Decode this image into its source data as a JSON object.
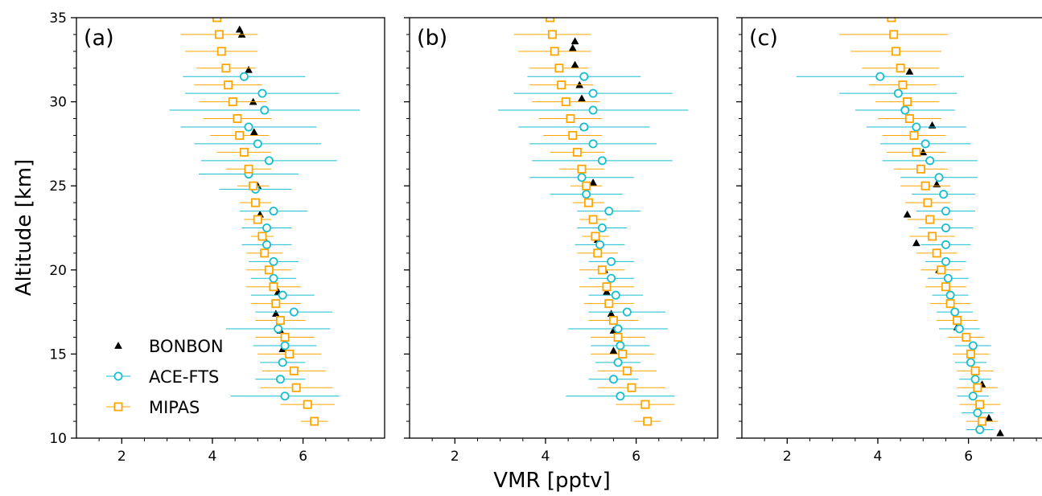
{
  "chart_data": {
    "type": "scatter",
    "xlabel": "VMR [pptv]",
    "ylabel": "Altitude [km]",
    "xlim": [
      1,
      7.8
    ],
    "ylim": [
      10,
      35
    ],
    "xticks": [
      2,
      4,
      6
    ],
    "yticks": [
      10,
      15,
      20,
      25,
      30,
      35
    ],
    "grid": false,
    "legend": {
      "location": "lower-left",
      "panel": 0,
      "entries": [
        "BONBON",
        "ACE-FTS",
        "MIPAS"
      ]
    },
    "colors": {
      "BONBON": "#000000",
      "ACE-FTS": "#17becf",
      "MIPAS": "#ffa500"
    },
    "panels": [
      {
        "label": "(a)",
        "series": [
          {
            "name": "BONBON",
            "marker": "triangle",
            "points": [
              [
                4.6,
                34.3
              ],
              [
                4.65,
                34.0
              ],
              [
                4.8,
                31.9
              ],
              [
                4.9,
                30.0
              ],
              [
                4.92,
                28.2
              ],
              [
                5.0,
                25.0
              ],
              [
                5.05,
                23.3
              ],
              [
                5.2,
                21.6
              ],
              [
                5.45,
                18.7
              ],
              [
                5.4,
                17.4
              ],
              [
                5.5,
                16.4
              ],
              [
                5.55,
                15.3
              ]
            ]
          },
          {
            "name": "ACE-FTS",
            "marker": "circle",
            "points": [
              [
                4.7,
                31.5,
                1.35
              ],
              [
                5.1,
                30.5,
                1.7
              ],
              [
                5.15,
                29.5,
                2.1
              ],
              [
                4.8,
                28.5,
                1.5
              ],
              [
                5.0,
                27.5,
                1.4
              ],
              [
                5.25,
                26.5,
                1.5
              ],
              [
                4.8,
                25.7,
                1.1
              ],
              [
                4.95,
                24.8,
                0.8
              ],
              [
                5.35,
                23.5,
                0.75
              ],
              [
                5.2,
                22.5,
                0.55
              ],
              [
                5.2,
                21.5,
                0.55
              ],
              [
                5.35,
                20.5,
                0.55
              ],
              [
                5.35,
                19.5,
                0.5
              ],
              [
                5.55,
                18.5,
                0.7
              ],
              [
                5.8,
                17.5,
                0.85
              ],
              [
                5.45,
                16.5,
                1.15
              ],
              [
                5.6,
                15.5,
                0.7
              ],
              [
                5.55,
                14.5,
                0.5
              ],
              [
                5.5,
                13.5,
                0.55
              ],
              [
                5.6,
                12.5,
                1.2
              ]
            ]
          },
          {
            "name": "MIPAS",
            "marker": "square",
            "points": [
              [
                4.1,
                35.0,
                0.8
              ],
              [
                4.15,
                34.0,
                0.85
              ],
              [
                4.2,
                33.0,
                0.8
              ],
              [
                4.3,
                32.0,
                0.65
              ],
              [
                4.35,
                31.0,
                0.75
              ],
              [
                4.45,
                30.0,
                0.75
              ],
              [
                4.55,
                29.0,
                0.75
              ],
              [
                4.6,
                28.0,
                0.65
              ],
              [
                4.7,
                27.0,
                0.6
              ],
              [
                4.8,
                26.0,
                0.5
              ],
              [
                4.9,
                25.0,
                0.35
              ],
              [
                4.95,
                24.0,
                0.35
              ],
              [
                5.0,
                23.0,
                0.3
              ],
              [
                5.1,
                22.0,
                0.25
              ],
              [
                5.15,
                21.0,
                0.4
              ],
              [
                5.25,
                20.0,
                0.5
              ],
              [
                5.35,
                19.0,
                0.6
              ],
              [
                5.4,
                18.0,
                0.55
              ],
              [
                5.5,
                17.0,
                0.55
              ],
              [
                5.6,
                16.0,
                0.65
              ],
              [
                5.7,
                15.0,
                0.7
              ],
              [
                5.8,
                14.0,
                0.7
              ],
              [
                5.85,
                13.0,
                0.8
              ],
              [
                6.1,
                12.0,
                0.6
              ],
              [
                6.25,
                11.0,
                0.3
              ]
            ]
          }
        ]
      },
      {
        "label": "(b)",
        "series": [
          {
            "name": "BONBON",
            "marker": "triangle",
            "points": [
              [
                4.65,
                33.6
              ],
              [
                4.6,
                33.2
              ],
              [
                4.65,
                32.2
              ],
              [
                4.75,
                31.0
              ],
              [
                4.8,
                30.2
              ],
              [
                4.85,
                28.5
              ],
              [
                5.05,
                25.2
              ],
              [
                5.05,
                23.0
              ],
              [
                5.15,
                21.8
              ],
              [
                5.3,
                20.0
              ],
              [
                5.35,
                18.7
              ],
              [
                5.45,
                17.4
              ],
              [
                5.5,
                16.4
              ],
              [
                5.5,
                15.2
              ]
            ]
          },
          {
            "name": "ACE-FTS",
            "marker": "circle",
            "points": [
              [
                4.85,
                31.5,
                1.25
              ],
              [
                5.05,
                30.5,
                1.75
              ],
              [
                5.05,
                29.5,
                2.1
              ],
              [
                4.85,
                28.5,
                1.45
              ],
              [
                5.05,
                27.5,
                1.4
              ],
              [
                5.25,
                26.5,
                1.55
              ],
              [
                4.8,
                25.5,
                1.15
              ],
              [
                4.9,
                24.5,
                0.8
              ],
              [
                5.4,
                23.5,
                0.7
              ],
              [
                5.25,
                22.5,
                0.55
              ],
              [
                5.2,
                21.5,
                0.55
              ],
              [
                5.45,
                20.5,
                0.5
              ],
              [
                5.45,
                19.5,
                0.5
              ],
              [
                5.55,
                18.5,
                0.6
              ],
              [
                5.8,
                17.5,
                0.85
              ],
              [
                5.6,
                16.5,
                1.1
              ],
              [
                5.65,
                15.5,
                0.65
              ],
              [
                5.6,
                14.5,
                0.5
              ],
              [
                5.5,
                13.5,
                0.55
              ],
              [
                5.65,
                12.5,
                1.2
              ]
            ]
          },
          {
            "name": "MIPAS",
            "marker": "square",
            "points": [
              [
                4.1,
                35.0,
                0.8
              ],
              [
                4.15,
                34.0,
                0.85
              ],
              [
                4.2,
                33.0,
                0.8
              ],
              [
                4.3,
                32.0,
                0.65
              ],
              [
                4.35,
                31.0,
                0.7
              ],
              [
                4.45,
                30.0,
                0.75
              ],
              [
                4.55,
                29.0,
                0.7
              ],
              [
                4.6,
                28.0,
                0.65
              ],
              [
                4.7,
                27.0,
                0.6
              ],
              [
                4.8,
                26.0,
                0.5
              ],
              [
                4.9,
                25.0,
                0.35
              ],
              [
                4.95,
                24.0,
                0.35
              ],
              [
                5.05,
                23.0,
                0.3
              ],
              [
                5.1,
                22.0,
                0.3
              ],
              [
                5.15,
                21.0,
                0.45
              ],
              [
                5.25,
                20.0,
                0.5
              ],
              [
                5.35,
                19.0,
                0.6
              ],
              [
                5.4,
                18.0,
                0.55
              ],
              [
                5.5,
                17.0,
                0.55
              ],
              [
                5.6,
                16.0,
                0.6
              ],
              [
                5.7,
                15.0,
                0.7
              ],
              [
                5.8,
                14.0,
                0.65
              ],
              [
                5.9,
                13.0,
                0.75
              ],
              [
                6.2,
                12.0,
                0.65
              ],
              [
                6.25,
                11.0,
                0.3
              ]
            ]
          }
        ]
      },
      {
        "label": "(c)",
        "series": [
          {
            "name": "BONBON",
            "marker": "triangle",
            "points": [
              [
                4.7,
                31.8
              ],
              [
                5.2,
                28.6
              ],
              [
                5.0,
                27.0
              ],
              [
                5.3,
                25.1
              ],
              [
                4.65,
                23.3
              ],
              [
                4.85,
                21.6
              ],
              [
                5.35,
                20.0
              ],
              [
                5.75,
                16.6
              ],
              [
                6.3,
                13.2
              ],
              [
                6.45,
                11.2
              ],
              [
                6.7,
                10.3
              ]
            ]
          },
          {
            "name": "ACE-FTS",
            "marker": "circle",
            "points": [
              [
                4.05,
                31.5,
                1.85
              ],
              [
                4.45,
                30.5,
                1.3
              ],
              [
                4.6,
                29.5,
                1.1
              ],
              [
                4.85,
                28.5,
                1.1
              ],
              [
                5.05,
                27.5,
                1.0
              ],
              [
                5.15,
                26.5,
                1.05
              ],
              [
                5.35,
                25.5,
                0.85
              ],
              [
                5.45,
                24.5,
                0.7
              ],
              [
                5.5,
                23.5,
                0.65
              ],
              [
                5.5,
                22.5,
                0.6
              ],
              [
                5.5,
                21.5,
                0.55
              ],
              [
                5.5,
                20.5,
                0.45
              ],
              [
                5.55,
                19.5,
                0.45
              ],
              [
                5.6,
                18.5,
                0.4
              ],
              [
                5.7,
                17.5,
                0.4
              ],
              [
                5.8,
                16.5,
                0.45
              ],
              [
                6.1,
                15.5,
                0.4
              ],
              [
                6.05,
                14.5,
                0.35
              ],
              [
                6.15,
                13.5,
                0.35
              ],
              [
                6.1,
                12.5,
                0.35
              ],
              [
                6.2,
                11.5,
                0.35
              ],
              [
                6.25,
                10.5,
                0.3
              ]
            ]
          },
          {
            "name": "MIPAS",
            "marker": "square",
            "points": [
              [
                4.3,
                35.0,
                1.2
              ],
              [
                4.35,
                34.0,
                1.2
              ],
              [
                4.4,
                33.0,
                1.0
              ],
              [
                4.5,
                32.0,
                0.85
              ],
              [
                4.55,
                31.0,
                0.75
              ],
              [
                4.65,
                30.0,
                0.7
              ],
              [
                4.7,
                29.0,
                0.7
              ],
              [
                4.8,
                28.0,
                0.7
              ],
              [
                4.85,
                27.0,
                0.65
              ],
              [
                4.95,
                26.0,
                0.6
              ],
              [
                5.05,
                25.0,
                0.55
              ],
              [
                5.1,
                24.0,
                0.5
              ],
              [
                5.15,
                23.0,
                0.5
              ],
              [
                5.2,
                22.0,
                0.5
              ],
              [
                5.3,
                21.0,
                0.45
              ],
              [
                5.4,
                20.0,
                0.45
              ],
              [
                5.5,
                19.0,
                0.45
              ],
              [
                5.6,
                18.0,
                0.45
              ],
              [
                5.75,
                17.0,
                0.45
              ],
              [
                5.95,
                16.0,
                0.4
              ],
              [
                6.05,
                15.0,
                0.4
              ],
              [
                6.15,
                14.0,
                0.4
              ],
              [
                6.2,
                13.0,
                0.45
              ],
              [
                6.25,
                12.0,
                0.45
              ],
              [
                6.3,
                11.0,
                0.35
              ]
            ]
          }
        ]
      }
    ]
  }
}
